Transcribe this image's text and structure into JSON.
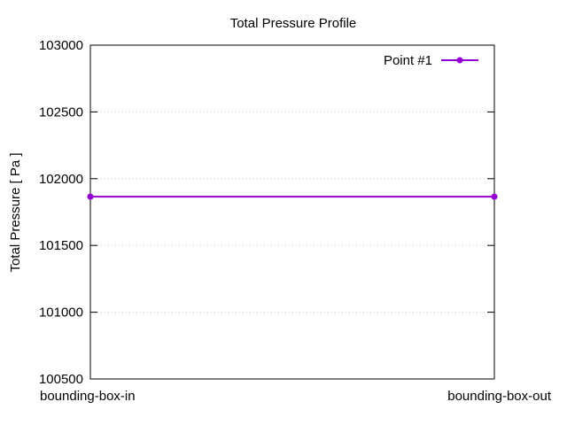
{
  "chart_data": {
    "type": "line",
    "title": "Total Pressure Profile",
    "xlabel": "",
    "ylabel": "Total Pressure [ Pa ]",
    "categories": [
      "bounding-box-in",
      "bounding-box-out"
    ],
    "ylim": [
      100500,
      103000
    ],
    "yticks": [
      100500,
      101000,
      101500,
      102000,
      102500,
      103000
    ],
    "grid": true,
    "legend_position": "top-right",
    "series": [
      {
        "name": "Point #1",
        "values": [
          101865,
          101865
        ],
        "color": "#9400d3"
      }
    ]
  }
}
